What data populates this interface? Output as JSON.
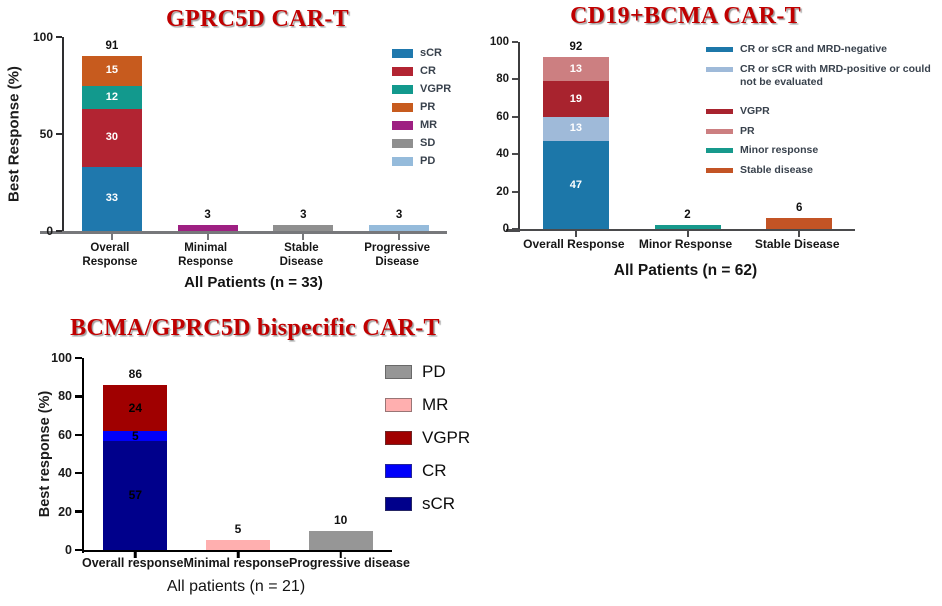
{
  "figure": {
    "background": "#ffffff",
    "title_color": "#c00000"
  },
  "chart_data": [
    {
      "type": "bar",
      "stacked": true,
      "title": "GPRC5D CAR-T",
      "ylabel": "Best Response (%)",
      "xlabel": "All Patients (n = 33)",
      "ylim": [
        0,
        100
      ],
      "yticks": [
        0,
        50,
        100
      ],
      "grid": false,
      "legend_position": "right-inside",
      "categories": [
        "Overall\nResponse",
        "Minimal\nResponse",
        "Stable\nDisease",
        "Progressive\nDisease"
      ],
      "legend": [
        {
          "label": "sCR",
          "color": "#1f78ad"
        },
        {
          "label": "CR",
          "color": "#b22432"
        },
        {
          "label": "VGPR",
          "color": "#12998d"
        },
        {
          "label": "PR",
          "color": "#c75b1e"
        },
        {
          "label": "MR",
          "color": "#9e2082"
        },
        {
          "label": "SD",
          "color": "#8f8f8f"
        },
        {
          "label": "PD",
          "color": "#95bbdb"
        }
      ],
      "bars": [
        {
          "category": "Overall\nResponse",
          "total_label": "91",
          "segments": [
            {
              "series": "sCR",
              "value": 33,
              "label": "33"
            },
            {
              "series": "CR",
              "value": 30,
              "label": "30"
            },
            {
              "series": "VGPR",
              "value": 12,
              "label": "12"
            },
            {
              "series": "PR",
              "value": 15,
              "label": "15"
            }
          ]
        },
        {
          "category": "Minimal\nResponse",
          "total_label": "3",
          "segments": [
            {
              "series": "MR",
              "value": 3
            }
          ]
        },
        {
          "category": "Stable\nDisease",
          "total_label": "3",
          "segments": [
            {
              "series": "SD",
              "value": 3
            }
          ]
        },
        {
          "category": "Progressive\nDisease",
          "total_label": "3",
          "segments": [
            {
              "series": "PD",
              "value": 3
            }
          ]
        }
      ]
    },
    {
      "type": "bar",
      "stacked": true,
      "title": "CD19+BCMA CAR-T",
      "ylabel": "",
      "xlabel": "All Patients (n = 62)",
      "ylim": [
        0,
        100
      ],
      "yticks": [
        0,
        20,
        40,
        60,
        80,
        100
      ],
      "grid": false,
      "legend_position": "right-inside",
      "categories": [
        "Overall Response",
        "Minor Response",
        "Stable Disease"
      ],
      "legend": [
        {
          "label": "CR or sCR and MRD-negative",
          "color": "#1c77a9"
        },
        {
          "label": "CR or sCR with MRD-positive or could not be evaluated",
          "color": "#9fbad9"
        },
        {
          "label": "VGPR",
          "color": "#a8232e",
          "group_break": true
        },
        {
          "label": "PR",
          "color": "#cc7f81"
        },
        {
          "label": "Minor response",
          "color": "#17998c"
        },
        {
          "label": "Stable disease",
          "color": "#c35425"
        }
      ],
      "bars": [
        {
          "category": "Overall Response",
          "total_label": "92",
          "segments": [
            {
              "series": "CR or sCR and MRD-negative",
              "value": 47,
              "label": "47"
            },
            {
              "series": "CR or sCR with MRD-positive or could not be evaluated",
              "value": 13,
              "label": "13"
            },
            {
              "series": "VGPR",
              "value": 19,
              "label": "19"
            },
            {
              "series": "PR",
              "value": 13,
              "label": "13"
            }
          ]
        },
        {
          "category": "Minor Response",
          "total_label": "2",
          "segments": [
            {
              "series": "Minor response",
              "value": 2
            }
          ]
        },
        {
          "category": "Stable Disease",
          "total_label": "6",
          "segments": [
            {
              "series": "Stable disease",
              "value": 6
            }
          ]
        }
      ]
    },
    {
      "type": "bar",
      "stacked": true,
      "title": "BCMA/GPRC5D bispecific CAR-T",
      "ylabel": "Best response (%)",
      "xlabel": "All patients (n = 21)",
      "ylim": [
        0,
        100
      ],
      "yticks": [
        0,
        20,
        40,
        60,
        80,
        100
      ],
      "grid": false,
      "legend_position": "right-inside",
      "categories": [
        "Overall response",
        "Minimal response",
        "Progressive disease"
      ],
      "legend": [
        {
          "label": "PD",
          "color": "#969696"
        },
        {
          "label": "MR",
          "color": "#ffafaf"
        },
        {
          "label": "VGPR",
          "color": "#a00000"
        },
        {
          "label": "CR",
          "color": "#0000fa"
        },
        {
          "label": "sCR",
          "color": "#00008b"
        }
      ],
      "bars": [
        {
          "category": "Overall response",
          "total_label": "86",
          "segments": [
            {
              "series": "sCR",
              "value": 57,
              "label": "57"
            },
            {
              "series": "CR",
              "value": 5,
              "label": "5"
            },
            {
              "series": "VGPR",
              "value": 24,
              "label": "24"
            }
          ]
        },
        {
          "category": "Minimal response",
          "total_label": "5",
          "segments": [
            {
              "series": "MR",
              "value": 5
            }
          ]
        },
        {
          "category": "Progressive disease",
          "total_label": "10",
          "segments": [
            {
              "series": "PD",
              "value": 10
            }
          ]
        }
      ]
    }
  ]
}
